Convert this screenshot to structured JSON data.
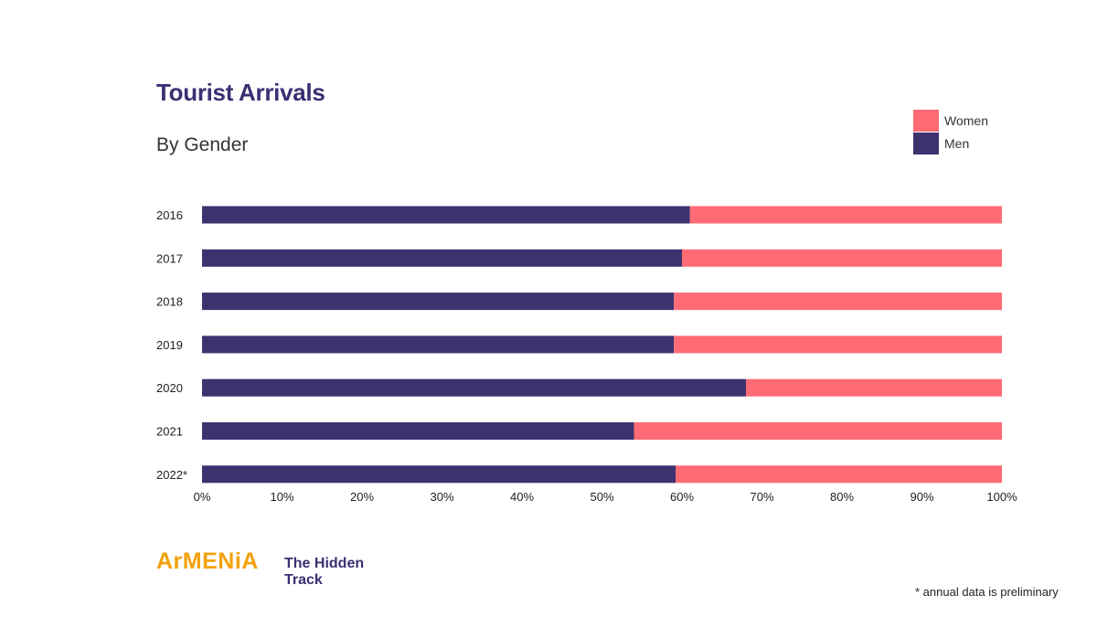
{
  "chart_data": {
    "type": "bar",
    "orientation": "horizontal",
    "stacked": true,
    "title": "Tourist Arrivals",
    "subtitle": "By Gender",
    "categories": [
      "2016",
      "2017",
      "2018",
      "2019",
      "2020",
      "2021",
      "2022*"
    ],
    "series": [
      {
        "name": "Men",
        "color": "#3d3170",
        "values": [
          61,
          60,
          59,
          59,
          68,
          54,
          59.2
        ]
      },
      {
        "name": "Women",
        "color": "#ff6b75",
        "values": [
          39,
          40,
          41,
          41,
          32,
          46,
          40.8
        ]
      }
    ],
    "x_ticks": [
      "0%",
      "10%",
      "20%",
      "30%",
      "40%",
      "50%",
      "60%",
      "70%",
      "80%",
      "90%",
      "100%"
    ],
    "xlim": [
      0,
      100
    ],
    "grid": false,
    "legend_position": "top-right",
    "legend": [
      {
        "name": "Women",
        "color": "#ff6b75"
      },
      {
        "name": "Men",
        "color": "#3d3170"
      }
    ]
  },
  "branding": {
    "logo_text": "ArMENiA",
    "tagline": "The Hidden Track"
  },
  "footnote": "* annual data is preliminary"
}
